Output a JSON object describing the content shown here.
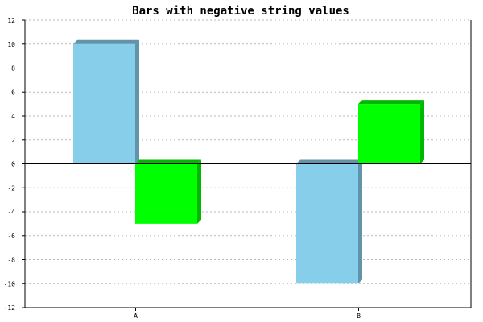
{
  "chart_data": {
    "type": "bar",
    "title": "Bars with negative string values",
    "xlabel": "",
    "ylabel": "",
    "categories": [
      "A",
      "B"
    ],
    "series": [
      {
        "values": [
          10,
          -10
        ],
        "color": "#87CEEB"
      },
      {
        "values": [
          -5,
          5
        ],
        "color": "#00FF00"
      }
    ],
    "ylim": [
      -12,
      12
    ],
    "yticks": [
      12,
      10,
      8,
      6,
      4,
      2,
      0,
      -2,
      -4,
      -6,
      -8,
      -10,
      -12
    ],
    "grid": true,
    "style": "3d"
  }
}
